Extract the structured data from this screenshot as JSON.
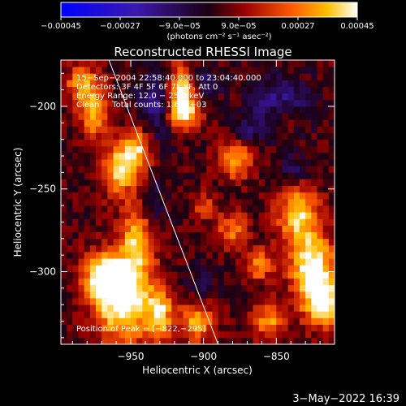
{
  "chart_data": {
    "type": "heatmap",
    "title": "Reconstructed RHESSI Image",
    "xlabel": "Heliocentric X (arcsec)",
    "ylabel": "Heliocentric Y (arcsec)",
    "xlim": [
      -998,
      -810
    ],
    "ylim": [
      -344,
      -172
    ],
    "x_ticks": [
      -950,
      -900,
      -850
    ],
    "y_ticks": [
      -200,
      -250,
      -300
    ],
    "x_tick_labels": [
      "−950",
      "−900",
      "−850"
    ],
    "y_tick_labels": [
      "−200",
      "−250",
      "−300"
    ],
    "colorbar": {
      "min": -0.00045,
      "max": 0.00045,
      "tick_values": [
        -0.00045,
        -0.00027,
        -9e-05,
        9e-05,
        0.00027,
        0.00045
      ],
      "tick_labels": [
        "−0.00045",
        "−0.00027",
        "−9.0e−05",
        "9.0e−05",
        "0.00027",
        "0.00045"
      ],
      "unit_label": "(photons cm⁻² s⁻¹ asec⁻²)"
    },
    "annotations": [
      "15−Sep−2004 22:58:40.000 to 23:04:40.000",
      "Detectors: 3F 4F 5F 6F 7F 8F, Att 0",
      "Energy Range: 12.0 − 25.0 keV",
      "Clean     Total counts: 1.67E+03"
    ],
    "peak_label": "Position of Peak = [−822,−295]",
    "limb_line": {
      "x": [
        -965,
        -890
      ],
      "y": [
        -172,
        -344
      ]
    },
    "hot_regions": [
      {
        "x": -955,
        "y": -318,
        "sx": 14,
        "sy": 18,
        "amp": 1.0
      },
      {
        "x": -968,
        "y": -303,
        "sx": 10,
        "sy": 10,
        "amp": 0.85
      },
      {
        "x": -945,
        "y": -280,
        "sx": 8,
        "sy": 14,
        "amp": 0.75
      },
      {
        "x": -958,
        "y": -238,
        "sx": 9,
        "sy": 11,
        "amp": 0.8
      },
      {
        "x": -945,
        "y": -225,
        "sx": 7,
        "sy": 9,
        "amp": 0.7
      },
      {
        "x": -975,
        "y": -205,
        "sx": 7,
        "sy": 10,
        "amp": 0.65
      },
      {
        "x": -983,
        "y": -186,
        "sx": 9,
        "sy": 8,
        "amp": 0.6
      },
      {
        "x": -916,
        "y": -191,
        "sx": 7,
        "sy": 11,
        "amp": 0.95
      },
      {
        "x": -913,
        "y": -205,
        "sx": 8,
        "sy": 6,
        "amp": 0.7
      },
      {
        "x": -878,
        "y": -232,
        "sx": 8,
        "sy": 8,
        "amp": 0.7
      },
      {
        "x": -835,
        "y": -265,
        "sx": 10,
        "sy": 12,
        "amp": 0.8
      },
      {
        "x": -825,
        "y": -298,
        "sx": 11,
        "sy": 14,
        "amp": 1.0
      },
      {
        "x": -818,
        "y": -320,
        "sx": 9,
        "sy": 10,
        "amp": 0.85
      },
      {
        "x": -855,
        "y": -330,
        "sx": 8,
        "sy": 8,
        "amp": 0.6
      },
      {
        "x": -905,
        "y": -330,
        "sx": 9,
        "sy": 9,
        "amp": 0.65
      },
      {
        "x": -930,
        "y": -325,
        "sx": 6,
        "sy": 12,
        "amp": 0.7
      },
      {
        "x": -880,
        "y": -275,
        "sx": 8,
        "sy": 8,
        "amp": 0.5
      },
      {
        "x": -862,
        "y": -296,
        "sx": 7,
        "sy": 7,
        "amp": 0.55
      },
      {
        "x": -845,
        "y": -207,
        "sx": 8,
        "sy": 6,
        "amp": 0.45
      },
      {
        "x": -900,
        "y": -260,
        "sx": 6,
        "sy": 6,
        "amp": 0.4
      }
    ],
    "cold_regions": [
      {
        "x": -932,
        "y": -198,
        "sx": 9,
        "sy": 16,
        "amp": 0.9
      },
      {
        "x": -848,
        "y": -200,
        "sx": 14,
        "sy": 12,
        "amp": 0.9
      },
      {
        "x": -898,
        "y": -185,
        "sx": 8,
        "sy": 6,
        "amp": 0.6
      },
      {
        "x": -935,
        "y": -262,
        "sx": 6,
        "sy": 12,
        "amp": 0.6
      },
      {
        "x": -870,
        "y": -215,
        "sx": 6,
        "sy": 6,
        "amp": 0.5
      },
      {
        "x": -838,
        "y": -238,
        "sx": 8,
        "sy": 6,
        "amp": 0.55
      },
      {
        "x": -902,
        "y": -308,
        "sx": 8,
        "sy": 8,
        "amp": 0.45
      }
    ]
  },
  "footer": {
    "date": "3−May−2022 16:39"
  }
}
